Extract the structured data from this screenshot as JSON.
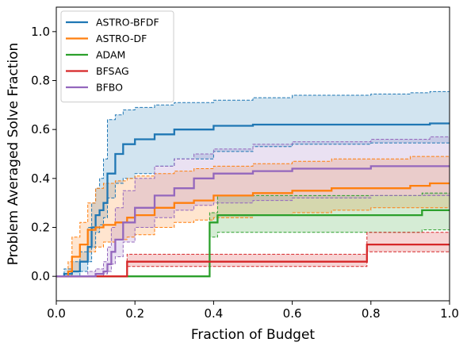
{
  "chart_data": {
    "type": "line",
    "title": "",
    "xlabel": "Fraction of Budget",
    "ylabel": "Problem Averaged Solve Fraction",
    "xlim": [
      0.0,
      1.0
    ],
    "ylim": [
      -0.1,
      1.1
    ],
    "xticks": [
      "0.0",
      "0.2",
      "0.4",
      "0.6",
      "0.8",
      "1.0"
    ],
    "yticks": [
      "0.0",
      "0.2",
      "0.4",
      "0.6",
      "0.8",
      "1.0"
    ],
    "xtick_values": [
      0.0,
      0.2,
      0.4,
      0.6,
      0.8,
      1.0
    ],
    "ytick_values": [
      0.0,
      0.2,
      0.4,
      0.6,
      0.8,
      1.0
    ],
    "grid": false,
    "legend_position": "top-left",
    "step": true,
    "series": [
      {
        "name": "ASTRO-BFDF",
        "color": "#1f77b4",
        "x": [
          0,
          0.02,
          0.04,
          0.06,
          0.08,
          0.09,
          0.1,
          0.11,
          0.12,
          0.13,
          0.15,
          0.17,
          0.2,
          0.25,
          0.3,
          0.4,
          0.5,
          0.6,
          0.8,
          0.9,
          0.95,
          1.0
        ],
        "values": [
          0,
          0.01,
          0.02,
          0.06,
          0.12,
          0.2,
          0.25,
          0.27,
          0.3,
          0.42,
          0.5,
          0.54,
          0.56,
          0.58,
          0.6,
          0.615,
          0.62,
          0.62,
          0.62,
          0.62,
          0.625,
          0.625
        ],
        "lower": [
          0,
          0.0,
          0.0,
          0.02,
          0.06,
          0.12,
          0.18,
          0.21,
          0.24,
          0.32,
          0.38,
          0.4,
          0.42,
          0.45,
          0.48,
          0.51,
          0.53,
          0.54,
          0.545,
          0.545,
          0.545,
          0.545
        ],
        "upper": [
          0,
          0.03,
          0.06,
          0.1,
          0.2,
          0.3,
          0.36,
          0.4,
          0.48,
          0.64,
          0.66,
          0.68,
          0.69,
          0.7,
          0.71,
          0.72,
          0.73,
          0.74,
          0.745,
          0.75,
          0.755,
          0.755
        ]
      },
      {
        "name": "ASTRO-DF",
        "color": "#ff7f0e",
        "x": [
          0,
          0.03,
          0.04,
          0.06,
          0.08,
          0.1,
          0.12,
          0.15,
          0.18,
          0.2,
          0.25,
          0.3,
          0.35,
          0.4,
          0.5,
          0.6,
          0.7,
          0.8,
          0.9,
          0.95,
          1.0
        ],
        "values": [
          0,
          0.02,
          0.08,
          0.13,
          0.19,
          0.2,
          0.21,
          0.22,
          0.24,
          0.25,
          0.28,
          0.3,
          0.31,
          0.33,
          0.34,
          0.35,
          0.36,
          0.36,
          0.37,
          0.38,
          0.38
        ],
        "lower": [
          0,
          0.0,
          0.02,
          0.06,
          0.1,
          0.12,
          0.14,
          0.15,
          0.16,
          0.17,
          0.2,
          0.22,
          0.23,
          0.24,
          0.25,
          0.26,
          0.27,
          0.28,
          0.28,
          0.28,
          0.28
        ],
        "upper": [
          0,
          0.06,
          0.16,
          0.22,
          0.3,
          0.36,
          0.38,
          0.39,
          0.4,
          0.41,
          0.42,
          0.43,
          0.44,
          0.45,
          0.46,
          0.47,
          0.48,
          0.48,
          0.49,
          0.49,
          0.49
        ]
      },
      {
        "name": "ADAM",
        "color": "#2ca02c",
        "x": [
          0,
          0.39,
          0.41,
          0.75,
          0.93,
          1.0
        ],
        "values": [
          0,
          0.22,
          0.25,
          0.25,
          0.27,
          0.27
        ],
        "lower": [
          0,
          0.16,
          0.18,
          0.18,
          0.19,
          0.19
        ],
        "upper": [
          0,
          0.26,
          0.33,
          0.33,
          0.34,
          0.34
        ]
      },
      {
        "name": "BFSAG",
        "color": "#d62728",
        "x": [
          0,
          0.18,
          0.79,
          1.0
        ],
        "values": [
          0,
          0.06,
          0.13,
          0.13
        ],
        "lower": [
          0,
          0.04,
          0.1,
          0.1
        ],
        "upper": [
          0,
          0.09,
          0.18,
          0.18
        ]
      },
      {
        "name": "BFBO",
        "color": "#9467bd",
        "x": [
          0,
          0.08,
          0.1,
          0.12,
          0.13,
          0.14,
          0.15,
          0.17,
          0.2,
          0.25,
          0.3,
          0.35,
          0.4,
          0.5,
          0.6,
          0.7,
          0.8,
          0.9,
          0.95,
          1.0
        ],
        "values": [
          0,
          0.0,
          0.01,
          0.02,
          0.05,
          0.1,
          0.15,
          0.22,
          0.28,
          0.33,
          0.36,
          0.4,
          0.42,
          0.43,
          0.44,
          0.44,
          0.45,
          0.45,
          0.45,
          0.45
        ],
        "lower": [
          0,
          0.0,
          0.0,
          0.01,
          0.02,
          0.05,
          0.08,
          0.14,
          0.2,
          0.24,
          0.27,
          0.29,
          0.3,
          0.31,
          0.32,
          0.32,
          0.33,
          0.33,
          0.33,
          0.33
        ],
        "upper": [
          0,
          0.02,
          0.03,
          0.06,
          0.12,
          0.2,
          0.28,
          0.35,
          0.4,
          0.45,
          0.48,
          0.5,
          0.52,
          0.54,
          0.55,
          0.55,
          0.56,
          0.56,
          0.57,
          0.57
        ]
      }
    ]
  }
}
